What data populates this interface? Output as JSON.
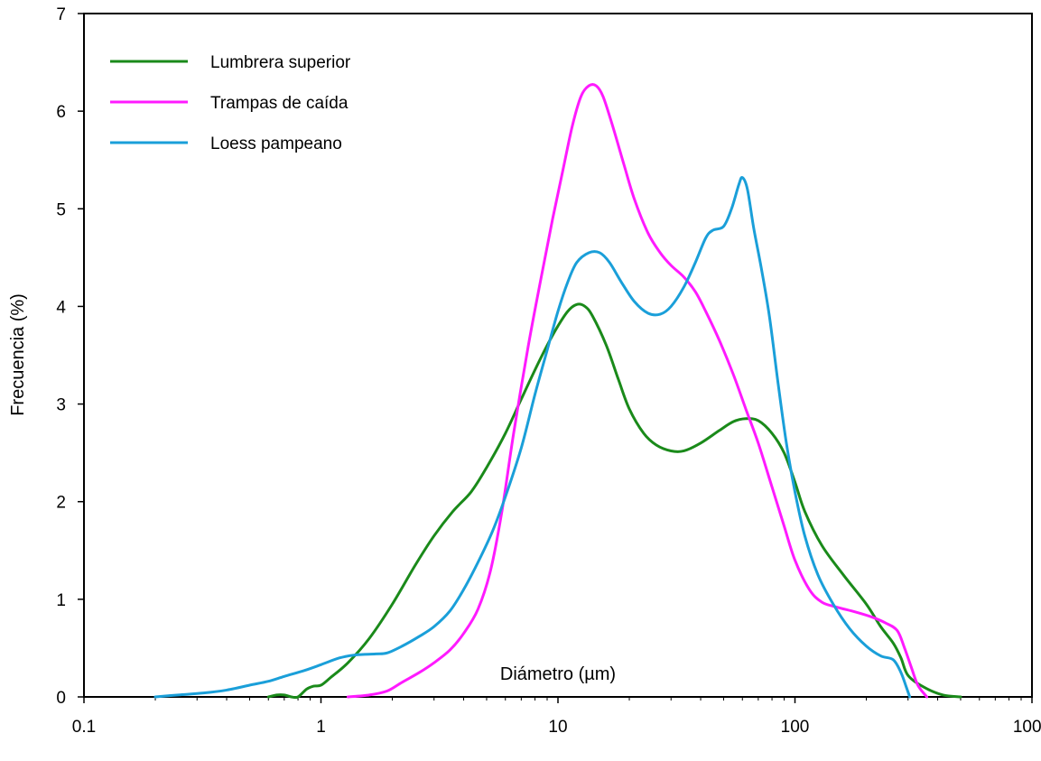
{
  "chart_data": {
    "type": "line",
    "title": "",
    "xlabel": "Diámetro (µm)",
    "ylabel": "Frecuencia (%)",
    "xscale": "log",
    "xlim": [
      0.1,
      1000
    ],
    "ylim": [
      0,
      7
    ],
    "x_ticks": [
      {
        "value": 0.1,
        "label": "0.1"
      },
      {
        "value": 1,
        "label": "1"
      },
      {
        "value": 10,
        "label": "10"
      },
      {
        "value": 100,
        "label": "100"
      },
      {
        "value": 1000,
        "label": "1000"
      }
    ],
    "y_ticks": [
      {
        "value": 0,
        "label": "0"
      },
      {
        "value": 1,
        "label": "1"
      },
      {
        "value": 2,
        "label": "2"
      },
      {
        "value": 3,
        "label": "3"
      },
      {
        "value": 4,
        "label": "4"
      },
      {
        "value": 5,
        "label": "5"
      },
      {
        "value": 6,
        "label": "6"
      },
      {
        "value": 7,
        "label": "7"
      }
    ],
    "grid": false,
    "legend": "top-left",
    "series": [
      {
        "name": "Lumbrera superior",
        "color": "#1a8a1a",
        "points": [
          [
            0.6,
            0.0
          ],
          [
            0.65,
            0.02
          ],
          [
            0.7,
            0.02
          ],
          [
            0.75,
            0.0
          ],
          [
            0.8,
            0.0
          ],
          [
            0.87,
            0.08
          ],
          [
            0.93,
            0.11
          ],
          [
            1.0,
            0.12
          ],
          [
            1.1,
            0.2
          ],
          [
            1.3,
            0.35
          ],
          [
            1.6,
            0.6
          ],
          [
            2.0,
            0.95
          ],
          [
            2.5,
            1.35
          ],
          [
            3.0,
            1.65
          ],
          [
            3.6,
            1.9
          ],
          [
            4.3,
            2.1
          ],
          [
            5.0,
            2.35
          ],
          [
            6.0,
            2.7
          ],
          [
            7.0,
            3.05
          ],
          [
            8.0,
            3.35
          ],
          [
            9.0,
            3.6
          ],
          [
            10.0,
            3.8
          ],
          [
            11.0,
            3.95
          ],
          [
            12.0,
            4.02
          ],
          [
            13.0,
            4.0
          ],
          [
            14.0,
            3.9
          ],
          [
            16.0,
            3.6
          ],
          [
            18.0,
            3.25
          ],
          [
            20.0,
            2.95
          ],
          [
            23.0,
            2.7
          ],
          [
            26.0,
            2.58
          ],
          [
            30.0,
            2.52
          ],
          [
            34.0,
            2.52
          ],
          [
            40.0,
            2.6
          ],
          [
            48.0,
            2.73
          ],
          [
            55.0,
            2.82
          ],
          [
            62.0,
            2.85
          ],
          [
            70.0,
            2.83
          ],
          [
            80.0,
            2.7
          ],
          [
            90.0,
            2.5
          ],
          [
            100.0,
            2.2
          ],
          [
            110.0,
            1.9
          ],
          [
            130.0,
            1.55
          ],
          [
            160.0,
            1.25
          ],
          [
            200.0,
            0.95
          ],
          [
            230.0,
            0.72
          ],
          [
            260.0,
            0.55
          ],
          [
            280.0,
            0.4
          ],
          [
            300.0,
            0.22
          ],
          [
            350.0,
            0.1
          ],
          [
            420.0,
            0.02
          ],
          [
            500.0,
            0.0
          ]
        ]
      },
      {
        "name": "Trampas de caída",
        "color": "#ff1aff",
        "points": [
          [
            1.3,
            0.0
          ],
          [
            1.6,
            0.02
          ],
          [
            1.9,
            0.06
          ],
          [
            2.2,
            0.15
          ],
          [
            2.6,
            0.25
          ],
          [
            3.0,
            0.35
          ],
          [
            3.5,
            0.48
          ],
          [
            4.0,
            0.65
          ],
          [
            4.6,
            0.9
          ],
          [
            5.2,
            1.3
          ],
          [
            5.8,
            1.9
          ],
          [
            6.5,
            2.7
          ],
          [
            7.5,
            3.6
          ],
          [
            8.5,
            4.3
          ],
          [
            9.5,
            4.9
          ],
          [
            10.5,
            5.4
          ],
          [
            11.5,
            5.85
          ],
          [
            12.5,
            6.15
          ],
          [
            13.5,
            6.26
          ],
          [
            14.5,
            6.26
          ],
          [
            15.5,
            6.15
          ],
          [
            17.0,
            5.85
          ],
          [
            19.0,
            5.45
          ],
          [
            21.0,
            5.1
          ],
          [
            24.0,
            4.75
          ],
          [
            27.0,
            4.55
          ],
          [
            30.0,
            4.42
          ],
          [
            34.0,
            4.3
          ],
          [
            38.0,
            4.15
          ],
          [
            42.0,
            3.95
          ],
          [
            48.0,
            3.65
          ],
          [
            55.0,
            3.3
          ],
          [
            62.0,
            2.95
          ],
          [
            70.0,
            2.6
          ],
          [
            80.0,
            2.15
          ],
          [
            90.0,
            1.75
          ],
          [
            100.0,
            1.4
          ],
          [
            115.0,
            1.1
          ],
          [
            130.0,
            0.97
          ],
          [
            150.0,
            0.92
          ],
          [
            180.0,
            0.87
          ],
          [
            210.0,
            0.82
          ],
          [
            240.0,
            0.76
          ],
          [
            270.0,
            0.68
          ],
          [
            290.0,
            0.5
          ],
          [
            310.0,
            0.3
          ],
          [
            330.0,
            0.12
          ],
          [
            360.0,
            0.0
          ]
        ]
      },
      {
        "name": "Loess pampeano",
        "color": "#1a9fd9",
        "points": [
          [
            0.2,
            0.0
          ],
          [
            0.25,
            0.02
          ],
          [
            0.32,
            0.04
          ],
          [
            0.4,
            0.07
          ],
          [
            0.5,
            0.12
          ],
          [
            0.6,
            0.16
          ],
          [
            0.7,
            0.21
          ],
          [
            0.85,
            0.27
          ],
          [
            1.0,
            0.33
          ],
          [
            1.2,
            0.4
          ],
          [
            1.4,
            0.43
          ],
          [
            1.7,
            0.44
          ],
          [
            1.9,
            0.45
          ],
          [
            2.2,
            0.52
          ],
          [
            2.6,
            0.62
          ],
          [
            3.0,
            0.72
          ],
          [
            3.5,
            0.88
          ],
          [
            4.0,
            1.1
          ],
          [
            4.6,
            1.38
          ],
          [
            5.3,
            1.7
          ],
          [
            6.0,
            2.05
          ],
          [
            7.0,
            2.55
          ],
          [
            8.0,
            3.1
          ],
          [
            9.0,
            3.55
          ],
          [
            10.0,
            3.95
          ],
          [
            11.0,
            4.25
          ],
          [
            12.0,
            4.45
          ],
          [
            13.5,
            4.55
          ],
          [
            15.0,
            4.55
          ],
          [
            16.5,
            4.45
          ],
          [
            18.5,
            4.25
          ],
          [
            21.0,
            4.05
          ],
          [
            24.0,
            3.93
          ],
          [
            27.0,
            3.92
          ],
          [
            30.0,
            4.0
          ],
          [
            34.0,
            4.2
          ],
          [
            38.0,
            4.45
          ],
          [
            42.0,
            4.7
          ],
          [
            45.0,
            4.78
          ],
          [
            50.0,
            4.82
          ],
          [
            54.0,
            5.0
          ],
          [
            58.0,
            5.25
          ],
          [
            60.0,
            5.32
          ],
          [
            63.0,
            5.2
          ],
          [
            67.0,
            4.8
          ],
          [
            72.0,
            4.4
          ],
          [
            78.0,
            3.9
          ],
          [
            85.0,
            3.2
          ],
          [
            92.0,
            2.6
          ],
          [
            100.0,
            2.1
          ],
          [
            110.0,
            1.65
          ],
          [
            125.0,
            1.25
          ],
          [
            145.0,
            0.95
          ],
          [
            170.0,
            0.7
          ],
          [
            200.0,
            0.52
          ],
          [
            230.0,
            0.42
          ],
          [
            260.0,
            0.38
          ],
          [
            280.0,
            0.25
          ],
          [
            295.0,
            0.1
          ],
          [
            305.0,
            0.0
          ]
        ]
      }
    ]
  }
}
